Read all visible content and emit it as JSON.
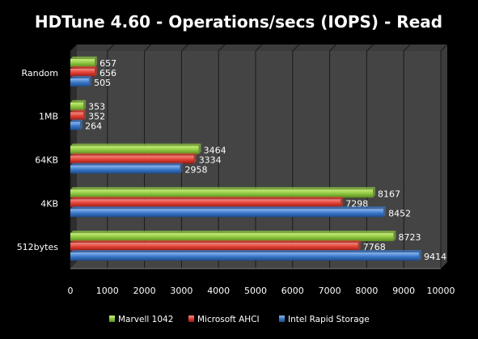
{
  "chart_data": {
    "type": "bar",
    "orientation": "horizontal",
    "title": "HDTune 4.60 - Operations/secs (IOPS) - Read",
    "categories": [
      "Random",
      "1MB",
      "64KB",
      "4KB",
      "512bytes"
    ],
    "series": [
      {
        "name": "Marvell 1042",
        "color": "#8cc63f",
        "values": [
          657,
          353,
          3464,
          8167,
          8723
        ]
      },
      {
        "name": "Microsoft AHCI",
        "color": "#e03c31",
        "values": [
          656,
          352,
          3334,
          7298,
          7768
        ]
      },
      {
        "name": "Intel Rapid Storage",
        "color": "#3a78c9",
        "values": [
          505,
          264,
          2958,
          8452,
          9414
        ]
      }
    ],
    "xlim": [
      0,
      10000
    ],
    "xticks": [
      0,
      1000,
      2000,
      3000,
      4000,
      5000,
      6000,
      7000,
      8000,
      9000,
      10000
    ],
    "grid": true,
    "legend": "bottom"
  }
}
